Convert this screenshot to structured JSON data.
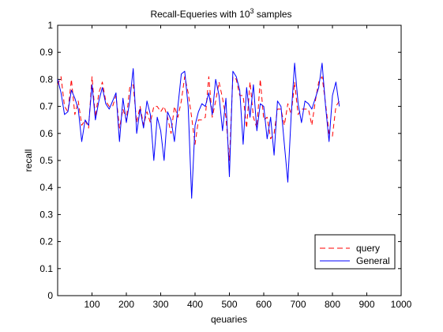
{
  "chart_data": {
    "type": "line",
    "title": "Recall-Equeries with 10",
    "title_superscript": "3",
    "title_suffix": " samples",
    "xlabel": "qeuaries",
    "ylabel": "recall",
    "xlim": [
      0,
      1000
    ],
    "ylim": [
      0,
      1
    ],
    "xticks": [
      "100",
      "200",
      "300",
      "400",
      "500",
      "600",
      "700",
      "800",
      "900",
      "1000"
    ],
    "yticks": [
      "0",
      "0.1",
      "0.2",
      "0.3",
      "0.4",
      "0.5",
      "0.6",
      "0.7",
      "0.8",
      "0.9",
      "1"
    ],
    "grid": false,
    "legend_position": "bottom-right",
    "x": [
      0,
      10,
      20,
      30,
      40,
      50,
      60,
      70,
      80,
      90,
      100,
      110,
      120,
      130,
      140,
      150,
      160,
      170,
      180,
      190,
      200,
      210,
      220,
      230,
      240,
      250,
      260,
      270,
      280,
      290,
      300,
      310,
      320,
      330,
      340,
      350,
      360,
      370,
      380,
      390,
      400,
      410,
      420,
      430,
      440,
      450,
      460,
      470,
      480,
      490,
      500,
      510,
      520,
      530,
      540,
      550,
      560,
      570,
      580,
      590,
      600,
      610,
      620,
      630,
      640,
      650,
      660,
      670,
      680,
      690,
      700,
      710,
      720,
      730,
      740,
      750,
      760,
      770,
      780,
      790,
      800,
      810,
      820
    ],
    "series": [
      {
        "name": "query",
        "color": "#ff0000",
        "dash": "dashed",
        "values": [
          0.78,
          0.81,
          0.7,
          0.68,
          0.8,
          0.67,
          0.72,
          0.63,
          0.65,
          0.62,
          0.81,
          0.66,
          0.75,
          0.79,
          0.72,
          0.7,
          0.7,
          0.74,
          0.62,
          0.69,
          0.65,
          0.77,
          0.78,
          0.64,
          0.7,
          0.63,
          0.68,
          0.64,
          0.7,
          0.7,
          0.68,
          0.7,
          0.66,
          0.6,
          0.7,
          0.66,
          0.72,
          0.81,
          0.75,
          0.66,
          0.56,
          0.65,
          0.65,
          0.66,
          0.81,
          0.66,
          0.72,
          0.79,
          0.73,
          0.66,
          0.5,
          0.81,
          0.8,
          0.74,
          0.74,
          0.62,
          0.79,
          0.66,
          0.62,
          0.8,
          0.65,
          0.66,
          0.58,
          0.6,
          0.69,
          0.69,
          0.63,
          0.71,
          0.67,
          0.79,
          0.67,
          0.69,
          0.69,
          0.69,
          0.63,
          0.72,
          0.79,
          0.81,
          0.71,
          0.6,
          0.59,
          0.7,
          0.72
        ]
      },
      {
        "name": "General",
        "color": "#0000ff",
        "dash": "solid",
        "values": [
          0.8,
          0.75,
          0.67,
          0.68,
          0.76,
          0.73,
          0.69,
          0.57,
          0.65,
          0.63,
          0.78,
          0.65,
          0.72,
          0.77,
          0.71,
          0.69,
          0.72,
          0.75,
          0.57,
          0.73,
          0.64,
          0.72,
          0.84,
          0.6,
          0.69,
          0.62,
          0.72,
          0.67,
          0.5,
          0.66,
          0.61,
          0.5,
          0.68,
          0.65,
          0.57,
          0.7,
          0.82,
          0.83,
          0.7,
          0.36,
          0.63,
          0.68,
          0.71,
          0.7,
          0.75,
          0.67,
          0.8,
          0.74,
          0.61,
          0.73,
          0.44,
          0.83,
          0.81,
          0.76,
          0.56,
          0.77,
          0.66,
          0.78,
          0.61,
          0.71,
          0.7,
          0.58,
          0.66,
          0.52,
          0.72,
          0.7,
          0.56,
          0.42,
          0.67,
          0.86,
          0.71,
          0.64,
          0.72,
          0.71,
          0.69,
          0.73,
          0.77,
          0.86,
          0.7,
          0.57,
          0.74,
          0.79,
          0.7
        ]
      }
    ]
  }
}
